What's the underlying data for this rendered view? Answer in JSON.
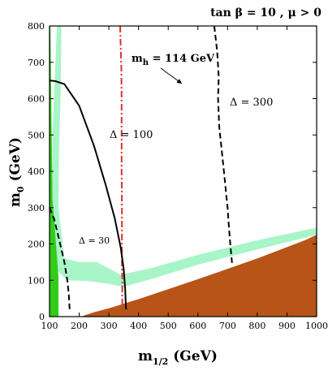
{
  "chart_data": {
    "type": "area",
    "title": "tan β = 10 , μ > 0",
    "xlabel": "m1/2 (GeV)",
    "ylabel": "m0 (GeV)",
    "xlim": [
      100,
      1000
    ],
    "ylim": [
      0,
      800
    ],
    "x_ticks": [
      100,
      200,
      300,
      400,
      500,
      600,
      700,
      800,
      900,
      1000
    ],
    "y_ticks": [
      0,
      100,
      200,
      300,
      400,
      500,
      600,
      700,
      800
    ],
    "grid": false,
    "colors": {
      "cosmology": "#a8f5c8",
      "excluded": "#b85418",
      "bsg": "#33cc1a",
      "mh": "#e03030"
    },
    "regions": [
      {
        "name": "stau LSP excluded region",
        "color": "#b85418",
        "points": [
          [
            210,
            0
          ],
          [
            1000,
            0
          ],
          [
            1000,
            225
          ],
          [
            960,
            210
          ],
          [
            800,
            160
          ],
          [
            600,
            103
          ],
          [
            400,
            48
          ],
          [
            300,
            23
          ],
          [
            250,
            12
          ],
          [
            220,
            4
          ]
        ]
      },
      {
        "name": "WMAP cosmology band",
        "color": "#a8f5c8",
        "points": [
          [
            125,
            800
          ],
          [
            140,
            800
          ],
          [
            138,
            630
          ],
          [
            132,
            450
          ],
          [
            130,
            300
          ],
          [
            150,
            160
          ],
          [
            200,
            150
          ],
          [
            260,
            150
          ],
          [
            340,
            115
          ],
          [
            450,
            135
          ],
          [
            600,
            170
          ],
          [
            800,
            210
          ],
          [
            1000,
            245
          ],
          [
            1000,
            225
          ],
          [
            800,
            185
          ],
          [
            600,
            143
          ],
          [
            450,
            105
          ],
          [
            350,
            82
          ],
          [
            300,
            90
          ],
          [
            230,
            98
          ],
          [
            160,
            100
          ],
          [
            110,
            140
          ],
          [
            108,
            240
          ],
          [
            110,
            500
          ],
          [
            120,
            700
          ]
        ]
      },
      {
        "name": "b→sγ excluded",
        "color": "#33cc1a",
        "points": [
          [
            100,
            0
          ],
          [
            130,
            0
          ],
          [
            130,
            110
          ],
          [
            118,
            240
          ],
          [
            110,
            320
          ],
          [
            103,
            800
          ],
          [
            100,
            800
          ]
        ]
      }
    ],
    "series": [
      {
        "name": "m_h = 114 GeV",
        "style": "dash-dot",
        "color": "#e03030",
        "x": [
          338,
          340,
          342,
          343,
          343,
          343,
          344,
          344,
          344,
          345,
          345,
          345
        ],
        "y": [
          800,
          740,
          680,
          600,
          500,
          400,
          300,
          200,
          150,
          100,
          50,
          20
        ]
      },
      {
        "name": "Δ = 100",
        "style": "solid",
        "color": "#000000",
        "x": [
          100,
          120,
          150,
          200,
          250,
          290,
          320,
          340,
          350,
          355,
          357,
          358
        ],
        "y": [
          650,
          648,
          640,
          580,
          470,
          360,
          270,
          190,
          130,
          75,
          35,
          20
        ]
      },
      {
        "name": "Δ = 300",
        "style": "dashed",
        "color": "#000000",
        "x": [
          655,
          665,
          670,
          668,
          672,
          680,
          690,
          700,
          705,
          710,
          715
        ],
        "y": [
          800,
          730,
          660,
          600,
          520,
          460,
          380,
          300,
          240,
          190,
          148
        ]
      },
      {
        "name": "Δ = 30",
        "style": "dashed",
        "color": "#000000",
        "x": [
          100,
          115,
          130,
          150,
          160,
          165,
          168
        ],
        "y": [
          300,
          270,
          220,
          150,
          100,
          60,
          15
        ]
      }
    ],
    "annotations": [
      {
        "text": "m_h = 114 GeV",
        "at": [
          370,
          690
        ]
      },
      {
        "text": "Δ = 100",
        "at": [
          330,
          440
        ]
      },
      {
        "text": "Δ = 300",
        "at": [
          780,
          480
        ]
      },
      {
        "text": "Δ = 30",
        "at": [
          212,
          240
        ]
      }
    ]
  }
}
